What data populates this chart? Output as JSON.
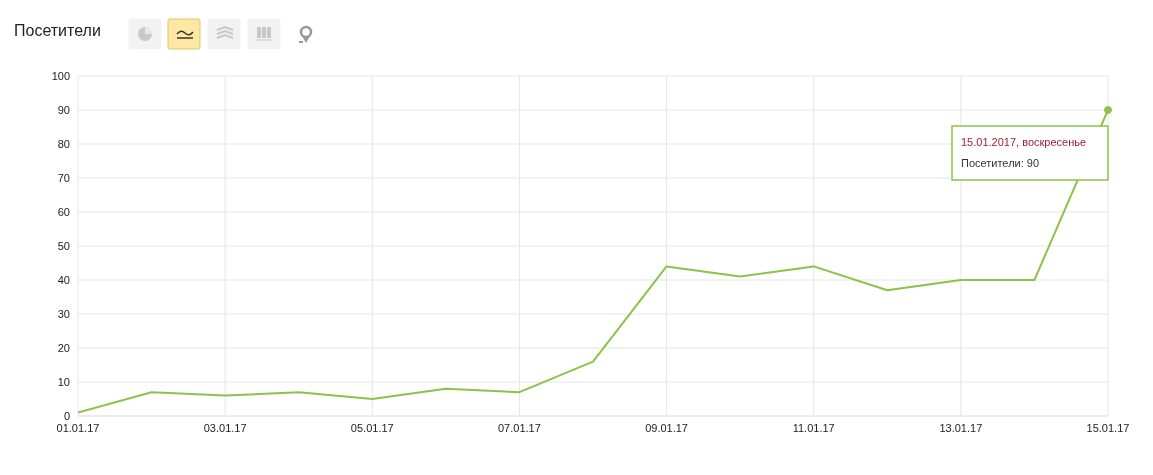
{
  "chart_data": {
    "type": "line",
    "title": "Посетители",
    "categories": [
      "01.01.17",
      null,
      "03.01.17",
      null,
      "05.01.17",
      null,
      "07.01.17",
      null,
      "09.01.17",
      null,
      "11.01.17",
      null,
      "13.01.17",
      null,
      "15.01.17"
    ],
    "series": [
      {
        "color": "#8bc34a",
        "values": [
          1,
          7,
          6,
          7,
          5,
          8,
          7,
          16,
          44,
          41,
          44,
          37,
          40,
          40,
          90
        ]
      }
    ],
    "ylim": [
      0,
      100
    ],
    "yticks": [
      0,
      10,
      20,
      30,
      40,
      50,
      60,
      70,
      80,
      90,
      100
    ],
    "grid": true,
    "legend": false,
    "marker": "none",
    "line_style": "solid",
    "annotations": [
      "15.01.2017, воскресенье",
      "Посетители: 90"
    ]
  }
}
